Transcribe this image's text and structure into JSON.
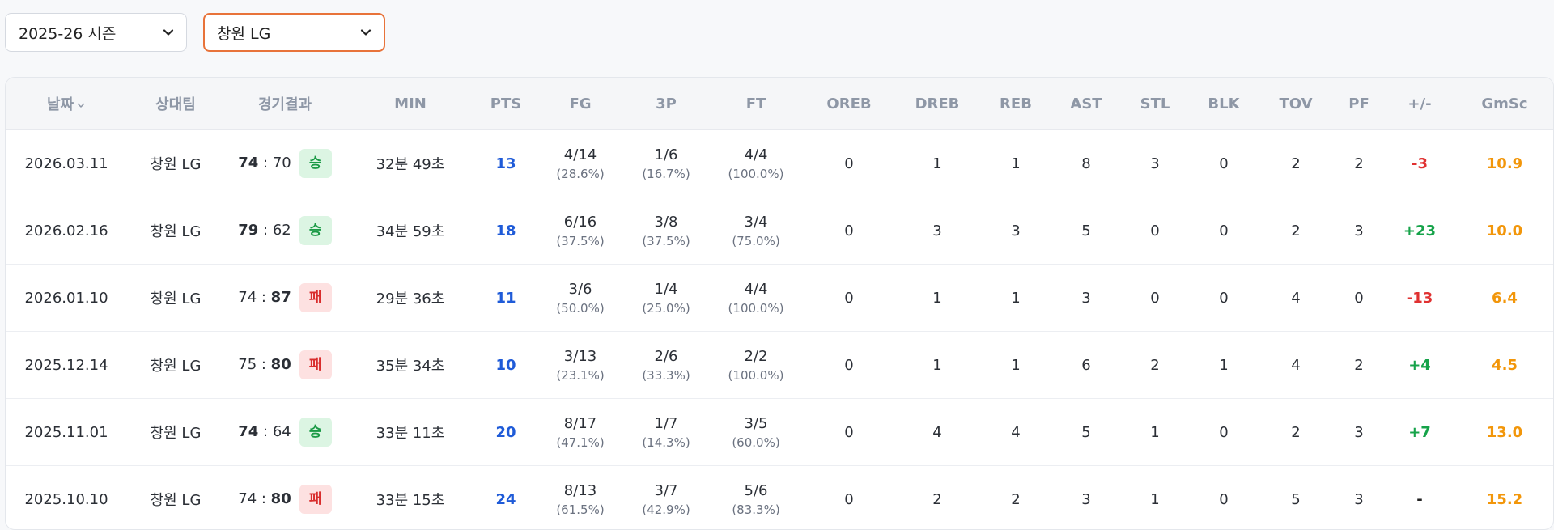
{
  "filters": {
    "season": "2025-26 시즌",
    "team": "창원 LG"
  },
  "table": {
    "headers": {
      "date": "날짜",
      "opponent": "상대팀",
      "result": "경기결과",
      "min": "MIN",
      "pts": "PTS",
      "fg": "FG",
      "three": "3P",
      "ft": "FT",
      "oreb": "OREB",
      "dreb": "DREB",
      "reb": "REB",
      "ast": "AST",
      "stl": "STL",
      "blk": "BLK",
      "tov": "TOV",
      "pf": "PF",
      "pm": "+/-",
      "gmsc": "GmSc"
    },
    "rows": [
      {
        "date": "2026.03.11",
        "opponent": "창원 LG",
        "score_a": "74",
        "score_b": "70",
        "winner": "a",
        "result": "승",
        "outcome": "win",
        "min": "32분 49초",
        "pts": "13",
        "fg": "4/14",
        "fg_pct": "(28.6%)",
        "three": "1/6",
        "three_pct": "(16.7%)",
        "ft": "4/4",
        "ft_pct": "(100.0%)",
        "oreb": "0",
        "dreb": "1",
        "reb": "1",
        "ast": "8",
        "stl": "3",
        "blk": "0",
        "tov": "2",
        "pf": "2",
        "pm": "-3",
        "gmsc": "10.9"
      },
      {
        "date": "2026.02.16",
        "opponent": "창원 LG",
        "score_a": "79",
        "score_b": "62",
        "winner": "a",
        "result": "승",
        "outcome": "win",
        "min": "34분 59초",
        "pts": "18",
        "fg": "6/16",
        "fg_pct": "(37.5%)",
        "three": "3/8",
        "three_pct": "(37.5%)",
        "ft": "3/4",
        "ft_pct": "(75.0%)",
        "oreb": "0",
        "dreb": "3",
        "reb": "3",
        "ast": "5",
        "stl": "0",
        "blk": "0",
        "tov": "2",
        "pf": "3",
        "pm": "+23",
        "gmsc": "10.0"
      },
      {
        "date": "2026.01.10",
        "opponent": "창원 LG",
        "score_a": "74",
        "score_b": "87",
        "winner": "b",
        "result": "패",
        "outcome": "loss",
        "min": "29분 36초",
        "pts": "11",
        "fg": "3/6",
        "fg_pct": "(50.0%)",
        "three": "1/4",
        "three_pct": "(25.0%)",
        "ft": "4/4",
        "ft_pct": "(100.0%)",
        "oreb": "0",
        "dreb": "1",
        "reb": "1",
        "ast": "3",
        "stl": "0",
        "blk": "0",
        "tov": "4",
        "pf": "0",
        "pm": "-13",
        "gmsc": "6.4"
      },
      {
        "date": "2025.12.14",
        "opponent": "창원 LG",
        "score_a": "75",
        "score_b": "80",
        "winner": "b",
        "result": "패",
        "outcome": "loss",
        "min": "35분 34초",
        "pts": "10",
        "fg": "3/13",
        "fg_pct": "(23.1%)",
        "three": "2/6",
        "three_pct": "(33.3%)",
        "ft": "2/2",
        "ft_pct": "(100.0%)",
        "oreb": "0",
        "dreb": "1",
        "reb": "1",
        "ast": "6",
        "stl": "2",
        "blk": "1",
        "tov": "4",
        "pf": "2",
        "pm": "+4",
        "gmsc": "4.5"
      },
      {
        "date": "2025.11.01",
        "opponent": "창원 LG",
        "score_a": "74",
        "score_b": "64",
        "winner": "a",
        "result": "승",
        "outcome": "win",
        "min": "33분 11초",
        "pts": "20",
        "fg": "8/17",
        "fg_pct": "(47.1%)",
        "three": "1/7",
        "three_pct": "(14.3%)",
        "ft": "3/5",
        "ft_pct": "(60.0%)",
        "oreb": "0",
        "dreb": "4",
        "reb": "4",
        "ast": "5",
        "stl": "1",
        "blk": "0",
        "tov": "2",
        "pf": "3",
        "pm": "+7",
        "gmsc": "13.0"
      },
      {
        "date": "2025.10.10",
        "opponent": "창원 LG",
        "score_a": "74",
        "score_b": "80",
        "winner": "b",
        "result": "패",
        "outcome": "loss",
        "min": "33분 15초",
        "pts": "24",
        "fg": "8/13",
        "fg_pct": "(61.5%)",
        "three": "3/7",
        "three_pct": "(42.9%)",
        "ft": "5/6",
        "ft_pct": "(83.3%)",
        "oreb": "0",
        "dreb": "2",
        "reb": "2",
        "ast": "3",
        "stl": "1",
        "blk": "0",
        "tov": "5",
        "pf": "3",
        "pm": "-",
        "gmsc": "15.2"
      }
    ]
  }
}
